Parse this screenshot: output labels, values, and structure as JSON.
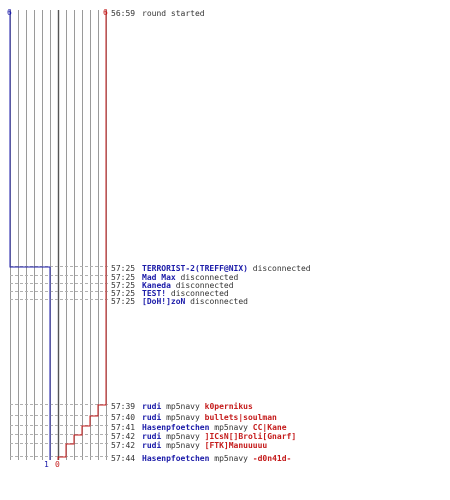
{
  "chart_data": {
    "type": "line",
    "title": "",
    "colors": {
      "team_ct": "#1a1aa8",
      "team_t": "#c41a1a",
      "text": "#333333",
      "grid": "#9a9a9a",
      "grid_center": "#555555",
      "dash": "#b0b0b0",
      "pale_blue": "#7c8cd0",
      "pale_red": "#d07070"
    },
    "counters": {
      "blue_start": "6",
      "red_start": "6",
      "blue_end": "1",
      "red_end": "0"
    },
    "series": [
      {
        "team": "ct",
        "values": [
          6,
          6,
          1,
          1
        ]
      },
      {
        "team": "t",
        "values": [
          6,
          6,
          5,
          4,
          3,
          2,
          1,
          0
        ]
      }
    ],
    "events": [
      {
        "time": "56:59",
        "segments": [
          {
            "text": "round started",
            "style": "plain"
          }
        ]
      },
      {
        "time": "57:25",
        "segments": [
          {
            "text": "TERRORIST-2(TREFF@NIX)",
            "style": "blue"
          },
          {
            "text": " disconnected",
            "style": "plain"
          }
        ]
      },
      {
        "time": "57:25",
        "segments": [
          {
            "text": "Mad Max",
            "style": "blue"
          },
          {
            "text": " disconnected",
            "style": "plain"
          }
        ]
      },
      {
        "time": "57:25",
        "segments": [
          {
            "text": "Kaneda",
            "style": "blue"
          },
          {
            "text": " disconnected",
            "style": "plain"
          }
        ]
      },
      {
        "time": "57:25",
        "segments": [
          {
            "text": "TEST!",
            "style": "blue"
          },
          {
            "text": " disconnected",
            "style": "plain"
          }
        ]
      },
      {
        "time": "57:25",
        "segments": [
          {
            "text": "[DoH!]zoN",
            "style": "blue"
          },
          {
            "text": " disconnected",
            "style": "plain"
          }
        ]
      },
      {
        "time": "57:39",
        "segments": [
          {
            "text": "rudi",
            "style": "blue"
          },
          {
            "text": " mp5navy ",
            "style": "plain"
          },
          {
            "text": "k0pernikus",
            "style": "red"
          }
        ]
      },
      {
        "time": "57:40",
        "segments": [
          {
            "text": "rudi",
            "style": "blue"
          },
          {
            "text": " mp5navy ",
            "style": "plain"
          },
          {
            "text": "bullets|soulman",
            "style": "red"
          }
        ]
      },
      {
        "time": "57:41",
        "segments": [
          {
            "text": "Hasenpfoetchen",
            "style": "blue"
          },
          {
            "text": " mp5navy ",
            "style": "plain"
          },
          {
            "text": "CC|Kane",
            "style": "red"
          }
        ]
      },
      {
        "time": "57:42",
        "segments": [
          {
            "text": "rudi",
            "style": "blue"
          },
          {
            "text": " mp5navy ",
            "style": "plain"
          },
          {
            "text": "]ICsN[]Broli[Gnarf]",
            "style": "red"
          }
        ]
      },
      {
        "time": "57:42",
        "segments": [
          {
            "text": "rudi",
            "style": "blue"
          },
          {
            "text": " mp5navy ",
            "style": "plain"
          },
          {
            "text": "[FTK]Manuuuuu",
            "style": "red"
          }
        ]
      },
      {
        "time": "57:44",
        "segments": [
          {
            "text": "Hasenpfoetchen",
            "style": "blue"
          },
          {
            "text": " mp5navy ",
            "style": "plain"
          },
          {
            "text": "-d0n41d-",
            "style": "red"
          }
        ]
      }
    ]
  }
}
